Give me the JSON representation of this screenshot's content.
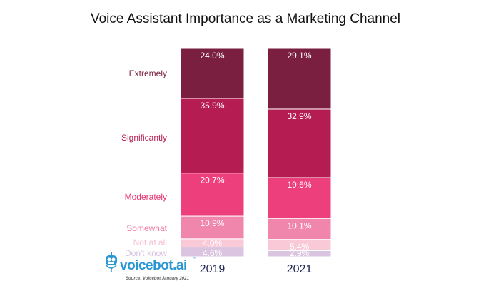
{
  "chart_data": {
    "type": "bar",
    "stacked": true,
    "title": "Voice Assistant Importance as a Marketing Channel",
    "categories": [
      "2019",
      "2021"
    ],
    "series": [
      {
        "name": "Extremely",
        "color": "#7a1f40",
        "label_color": "#7a1f40",
        "values": [
          24.0,
          29.1
        ],
        "labels": [
          "24.0%",
          "29.1%"
        ]
      },
      {
        "name": "Significantly",
        "color": "#b51d52",
        "label_color": "#b51d52",
        "values": [
          35.9,
          32.9
        ],
        "labels": [
          "35.9%",
          "32.9%"
        ]
      },
      {
        "name": "Moderately",
        "color": "#ee3f7d",
        "label_color": "#e8336f",
        "values": [
          20.7,
          19.6
        ],
        "labels": [
          "20.7%",
          "19.6%"
        ]
      },
      {
        "name": "Somewhat",
        "color": "#f186ad",
        "label_color": "#f07aa4",
        "values": [
          10.9,
          10.1
        ],
        "labels": [
          "10.9%",
          "10.1%"
        ]
      },
      {
        "name": "Not at all",
        "color": "#f9c9d8",
        "label_color": "#f7bfd1",
        "values": [
          4.0,
          5.4
        ],
        "labels": [
          "4.0%",
          "5.4%"
        ]
      },
      {
        "name": "Don't know",
        "color": "#dac4e0",
        "label_color": "#d7c2df",
        "values": [
          4.6,
          2.9
        ],
        "labels": [
          "4.6%",
          "2.9%"
        ]
      }
    ],
    "grid": false,
    "legend": "left"
  },
  "logo": {
    "text": "voicebot.ai",
    "trademark": "™"
  },
  "source": "Source: Voicebot January 2021"
}
